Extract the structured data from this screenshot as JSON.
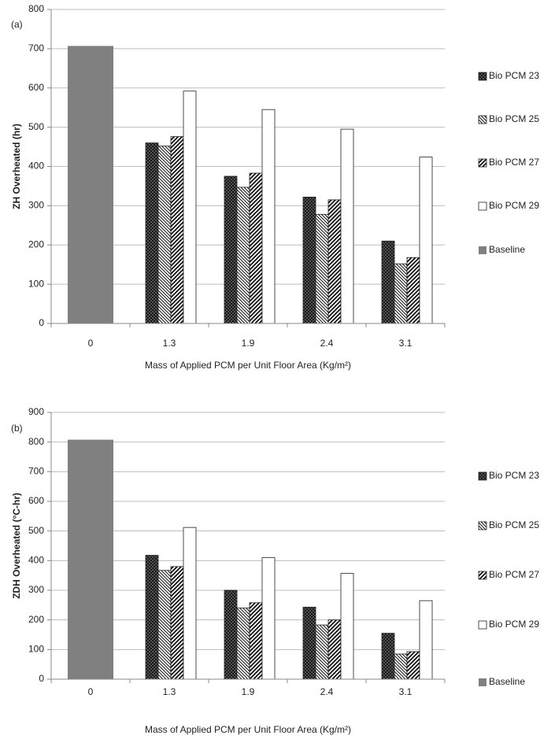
{
  "chart_data": [
    {
      "type": "bar",
      "panel_label": "(a)",
      "y_label": "ZH Overheated (hr)",
      "x_label": "Mass of Applied PCM per Unit Floor Area (Kg/m²)",
      "categories": [
        "0",
        "1.3",
        "1.9",
        "2.4",
        "3.1"
      ],
      "series": [
        {
          "name": "Bio PCM 23",
          "color": "#555555",
          "pattern": "crosshatch",
          "values": [
            null,
            460,
            375,
            322,
            210
          ]
        },
        {
          "name": "Bio PCM 25",
          "color": "#ffffff",
          "pattern": "back-diagonal",
          "values": [
            null,
            452,
            347,
            278,
            152
          ]
        },
        {
          "name": "Bio PCM 27",
          "color": "#ffffff",
          "pattern": "forward-diagonal",
          "values": [
            null,
            476,
            383,
            315,
            168
          ]
        },
        {
          "name": "Bio PCM 29",
          "color": "#ffffff",
          "pattern": "none",
          "values": [
            null,
            592,
            545,
            495,
            424
          ]
        },
        {
          "name": "Baseline",
          "color": "#808080",
          "pattern": "none",
          "values": [
            707,
            null,
            null,
            null,
            null
          ]
        }
      ],
      "ylim": [
        0,
        800
      ],
      "yticks": [
        0,
        100,
        200,
        300,
        400,
        500,
        600,
        700,
        800
      ],
      "grid": true,
      "legend": "right"
    },
    {
      "type": "bar",
      "panel_label": "(b)",
      "y_label": "ZDH Overheated (°C-hr)",
      "x_label": "Mass of Applied PCM per Unit Floor Area (Kg/m²)",
      "categories": [
        "0",
        "1.3",
        "1.9",
        "2.4",
        "3.1"
      ],
      "series": [
        {
          "name": "Bio PCM 23",
          "color": "#555555",
          "pattern": "crosshatch",
          "values": [
            null,
            418,
            300,
            243,
            155
          ]
        },
        {
          "name": "Bio PCM 25",
          "color": "#ffffff",
          "pattern": "back-diagonal",
          "values": [
            null,
            367,
            240,
            183,
            85
          ]
        },
        {
          "name": "Bio PCM 27",
          "color": "#ffffff",
          "pattern": "forward-diagonal",
          "values": [
            null,
            380,
            258,
            200,
            93
          ]
        },
        {
          "name": "Bio PCM 29",
          "color": "#ffffff",
          "pattern": "none",
          "values": [
            null,
            512,
            410,
            357,
            265
          ]
        },
        {
          "name": "Baseline",
          "color": "#808080",
          "pattern": "none",
          "values": [
            808,
            null,
            null,
            null,
            null
          ]
        }
      ],
      "ylim": [
        0,
        900
      ],
      "yticks": [
        0,
        100,
        200,
        300,
        400,
        500,
        600,
        700,
        800,
        900
      ],
      "grid": true,
      "legend": "right"
    }
  ]
}
